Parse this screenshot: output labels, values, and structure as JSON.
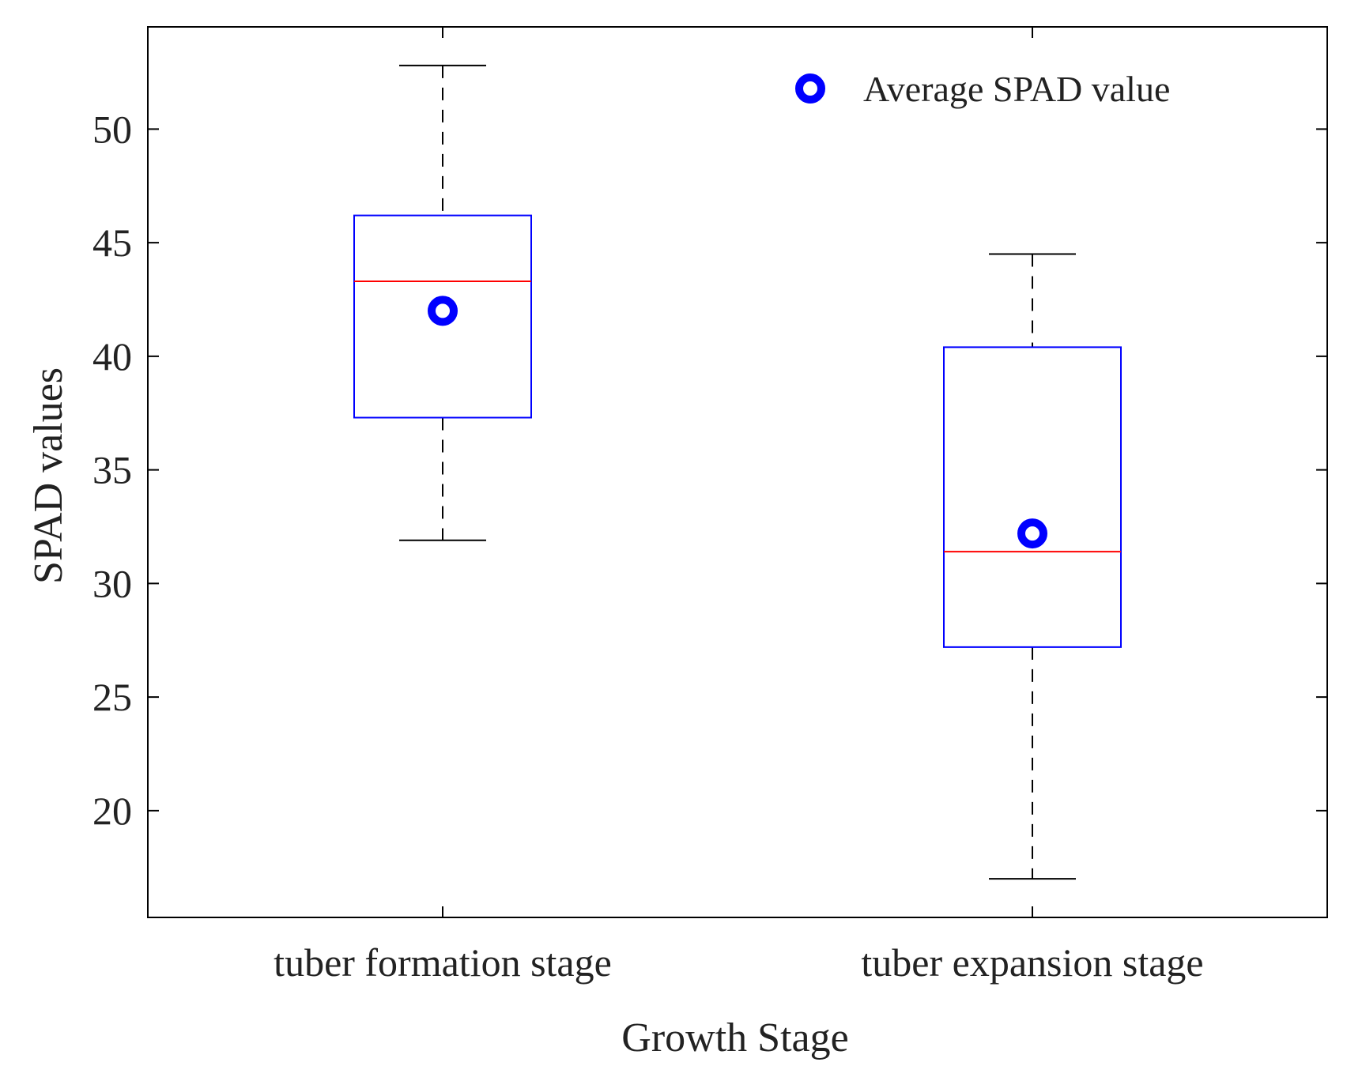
{
  "chart_data": {
    "type": "box",
    "title": "",
    "xlabel": "Growth Stage",
    "ylabel": "SPAD values",
    "ylim": [
      15.3,
      54.5
    ],
    "yticks": [
      20,
      25,
      30,
      35,
      40,
      45,
      50
    ],
    "categories": [
      "tuber formation stage",
      "tuber expansion stage"
    ],
    "boxes": [
      {
        "category": "tuber formation stage",
        "min": 31.9,
        "q1": 37.3,
        "median": 43.3,
        "q3": 46.2,
        "max": 52.8,
        "mean": 42.0
      },
      {
        "category": "tuber expansion stage",
        "min": 17.0,
        "q1": 27.2,
        "median": 31.4,
        "q3": 40.4,
        "max": 44.5,
        "mean": 32.2
      }
    ],
    "legend": {
      "label": "Average SPAD value",
      "position": "top-right"
    },
    "colors": {
      "box": "#0000ff",
      "median": "#ff0000",
      "whisker": "#000000",
      "mean_marker": "#0000ff",
      "axis": "#000000"
    }
  }
}
